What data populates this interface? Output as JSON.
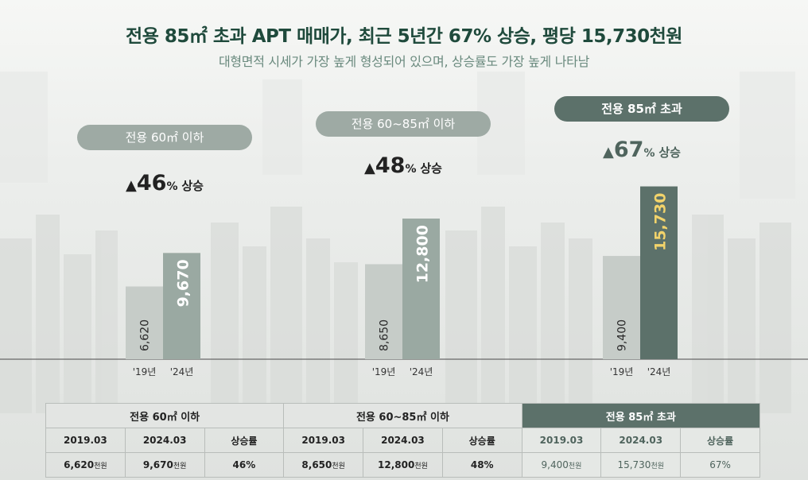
{
  "header": {
    "title": "전용 85㎡ 초과 APT 매매가, 최근 5년간 67% 상승, 평당 15,730천원",
    "subtitle": "대형면적 시세가 가장 높게 형성되어 있으며, 상승률도 가장 높게 나타남"
  },
  "colors": {
    "title": "#1f4a3c",
    "bar_2019": "#c6ccc8",
    "bar_2024": "#9aa9a2",
    "bar_2024_highlight": "#5c716a",
    "highlight_value": "#f2d36b"
  },
  "chart_data": {
    "type": "bar",
    "groups": [
      {
        "label": "전용 60㎡ 이하",
        "rise_value": "46",
        "rise_suffix": "% ",
        "rise_word": "상승",
        "categories": [
          "'19년",
          "'24년"
        ],
        "values": [
          6620,
          9670
        ],
        "value_labels": [
          "6,620",
          "9,670"
        ]
      },
      {
        "label": "전용 60~85㎡ 이하",
        "rise_value": "48",
        "rise_suffix": "% ",
        "rise_word": "상승",
        "categories": [
          "'19년",
          "'24년"
        ],
        "values": [
          8650,
          12800
        ],
        "value_labels": [
          "8,650",
          "12,800"
        ]
      },
      {
        "label": "전용 85㎡ 초과",
        "rise_value": "67",
        "rise_suffix": "% ",
        "rise_word": "상승",
        "categories": [
          "'19년",
          "'24년"
        ],
        "values": [
          9400,
          15730
        ],
        "value_labels": [
          "9,400",
          "15,730"
        ]
      }
    ],
    "ylim": [
      0,
      17000
    ]
  },
  "table": {
    "groups": [
      "전용 60㎡ 이하",
      "전용 60~85㎡ 이하",
      "전용 85㎡ 초과"
    ],
    "subheaders": [
      "2019.03",
      "2024.03",
      "상승률"
    ],
    "values": [
      [
        "6,620",
        "9,670",
        "46%"
      ],
      [
        "8,650",
        "12,800",
        "48%"
      ],
      [
        "9,400",
        "15,730",
        "67%"
      ]
    ],
    "unit": "천원"
  }
}
